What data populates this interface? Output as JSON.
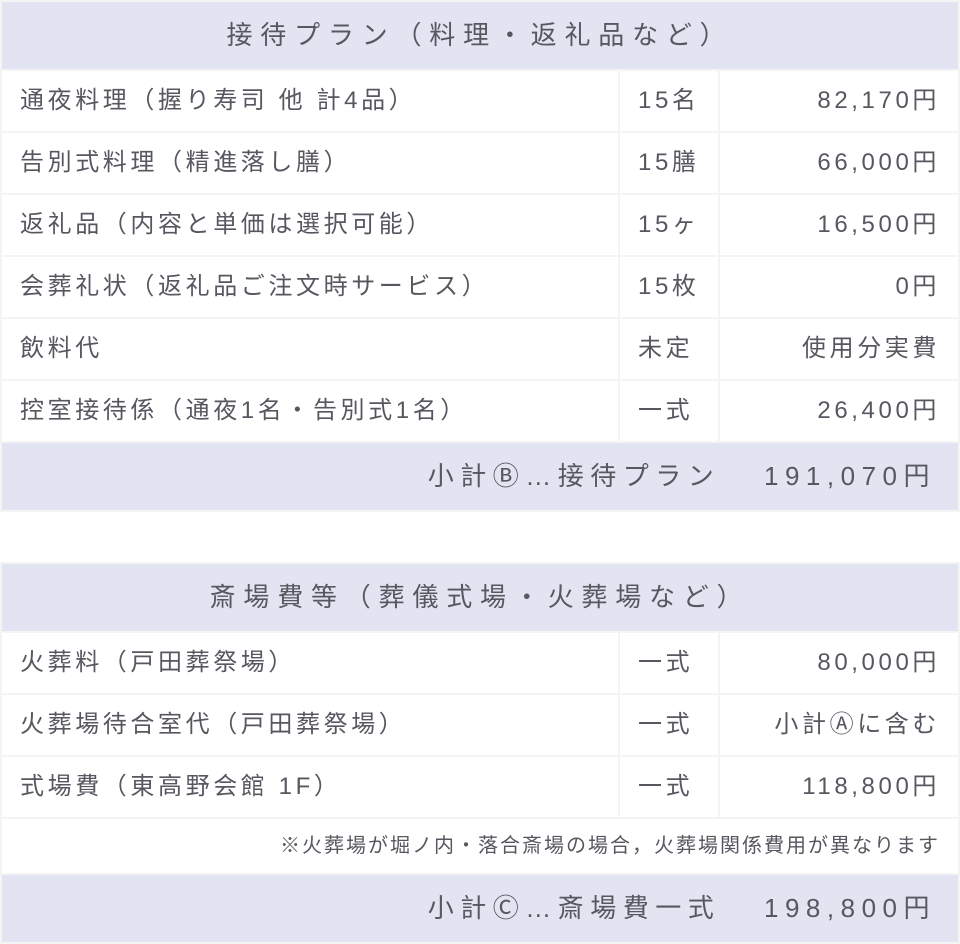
{
  "section1": {
    "title": "接待プラン（料理・返礼品など）",
    "rows": [
      {
        "item": "通夜料理（握り寿司 他 計4品）",
        "qty": "15名",
        "price": "82,170円"
      },
      {
        "item": "告別式料理（精進落し膳）",
        "qty": "15膳",
        "price": "66,000円"
      },
      {
        "item": "返礼品（内容と単価は選択可能）",
        "qty": "15ヶ",
        "price": "16,500円"
      },
      {
        "item": "会葬礼状（返礼品ご注文時サービス）",
        "qty": "15枚",
        "price": "0円"
      },
      {
        "item": "飲料代",
        "qty": "未定",
        "price": "使用分実費"
      },
      {
        "item": "控室接待係（通夜1名・告別式1名）",
        "qty": "一式",
        "price": "26,400円"
      }
    ],
    "subtotal_label": "小計Ⓑ…接待プラン",
    "subtotal_value": "191,070円"
  },
  "section2": {
    "title": "斎場費等（葬儀式場・火葬場など）",
    "rows": [
      {
        "item": "火葬料（戸田葬祭場）",
        "qty": "一式",
        "price": "80,000円"
      },
      {
        "item": "火葬場待合室代（戸田葬祭場）",
        "qty": "一式",
        "price": "小計Ⓐに含む"
      },
      {
        "item": "式場費（東高野会館 1F）",
        "qty": "一式",
        "price": "118,800円"
      }
    ],
    "note": "※火葬場が堀ノ内・落合斎場の場合，火葬場関係費用が異なります",
    "subtotal_label": "小計Ⓒ…斎場費一式",
    "subtotal_value": "198,800円"
  },
  "colors": {
    "header_bg": "#e3e4f1",
    "border": "#f4f4f5",
    "text": "#575760",
    "row_bg": "#ffffff"
  }
}
